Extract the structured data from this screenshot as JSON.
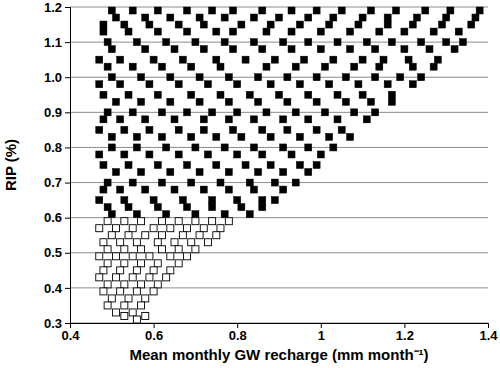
{
  "chart_data": {
    "type": "scatter",
    "x_label": "Mean monthly GW recharge (mm month⁻¹)",
    "y_label": "RIP (%)",
    "xlim": [
      0.4,
      1.4
    ],
    "ylim": [
      0.3,
      1.2
    ],
    "xticks": [
      0.4,
      0.6,
      0.8,
      1,
      1.2,
      1.4
    ],
    "yticks": [
      0.3,
      0.4,
      0.5,
      0.6,
      0.7,
      0.8,
      0.9,
      {
        "value": 1,
        "label": "1.0"
      },
      1.1,
      1.2
    ],
    "grid": true,
    "series": [
      {
        "color": "#000000",
        "marker": "square",
        "x": [
          0.5,
          0.55,
          0.61,
          0.68,
          0.74,
          0.79,
          0.86,
          0.93,
          0.99,
          1.05,
          1.12,
          1.18,
          1.25,
          1.31,
          1.38,
          0.51,
          0.58,
          0.64,
          0.71,
          0.77,
          0.84,
          0.9,
          0.97,
          1.03,
          1.1,
          1.16,
          1.23,
          1.3,
          1.37,
          0.48,
          0.53,
          0.59,
          0.66,
          0.72,
          0.81,
          0.88,
          0.95,
          1.02,
          1.09,
          1.16,
          1.22,
          1.29,
          1.36,
          0.48,
          0.54,
          0.61,
          0.68,
          0.75,
          0.79,
          0.87,
          0.93,
          1.0,
          1.07,
          1.14,
          1.2,
          1.27,
          1.33,
          0.49,
          0.56,
          0.63,
          0.7,
          0.77,
          0.84,
          0.91,
          0.97,
          1.04,
          1.11,
          1.17,
          1.24,
          1.3,
          1.34,
          0.5,
          0.58,
          0.65,
          0.72,
          0.79,
          0.86,
          0.93,
          1.0,
          1.07,
          1.13,
          1.2,
          1.26,
          1.32,
          0.47,
          0.52,
          0.6,
          0.67,
          0.75,
          0.82,
          0.89,
          0.96,
          1.03,
          1.1,
          1.15,
          1.21,
          1.28,
          0.49,
          0.55,
          0.62,
          0.69,
          0.76,
          0.87,
          0.94,
          1.01,
          1.08,
          1.14,
          1.22,
          1.27,
          0.5,
          0.57,
          0.64,
          0.71,
          0.78,
          0.85,
          0.92,
          0.99,
          1.06,
          1.13,
          1.19,
          1.24,
          0.47,
          0.52,
          0.59,
          0.66,
          0.73,
          0.8,
          0.88,
          0.95,
          1.02,
          1.09,
          1.16,
          1.22,
          0.48,
          0.54,
          0.61,
          0.69,
          0.76,
          0.83,
          0.9,
          0.97,
          1.04,
          1.1,
          1.17,
          0.51,
          0.57,
          0.64,
          0.71,
          0.78,
          0.85,
          0.92,
          0.99,
          1.06,
          1.12,
          1.17,
          0.49,
          0.55,
          0.62,
          0.68,
          0.74,
          0.8,
          0.87,
          0.94,
          1.01,
          1.08,
          1.13,
          0.48,
          0.52,
          0.58,
          0.65,
          0.72,
          0.78,
          0.84,
          0.91,
          0.97,
          1.04,
          1.11,
          0.47,
          0.53,
          0.59,
          0.66,
          0.72,
          0.79,
          0.86,
          0.92,
          0.99,
          1.05,
          0.5,
          0.56,
          0.62,
          0.69,
          0.75,
          0.81,
          0.88,
          0.95,
          1.02,
          1.07,
          0.5,
          0.56,
          0.63,
          0.7,
          0.77,
          0.84,
          0.91,
          0.97,
          1.03,
          0.47,
          0.53,
          0.59,
          0.66,
          0.73,
          0.8,
          0.86,
          0.93,
          1.0,
          0.48,
          0.54,
          0.61,
          0.68,
          0.75,
          0.82,
          0.88,
          0.95,
          0.99,
          0.51,
          0.57,
          0.64,
          0.71,
          0.78,
          0.85,
          0.91,
          0.97,
          0.49,
          0.55,
          0.62,
          0.69,
          0.76,
          0.83,
          0.89,
          0.94,
          0.48,
          0.52,
          0.58,
          0.65,
          0.72,
          0.78,
          0.84,
          0.91,
          0.47,
          0.53,
          0.6,
          0.67,
          0.74,
          0.8,
          0.86,
          0.89,
          0.49,
          0.54,
          0.61,
          0.68,
          0.74,
          0.81,
          0.86,
          0.5,
          0.56,
          0.63,
          0.7,
          0.77,
          0.83
        ],
        "values": [
          1.19,
          1.19,
          1.19,
          1.19,
          1.19,
          1.19,
          1.19,
          1.19,
          1.19,
          1.19,
          1.19,
          1.19,
          1.19,
          1.19,
          1.19,
          1.17,
          1.17,
          1.17,
          1.17,
          1.17,
          1.17,
          1.17,
          1.17,
          1.17,
          1.17,
          1.17,
          1.17,
          1.17,
          1.17,
          1.15,
          1.15,
          1.15,
          1.15,
          1.15,
          1.15,
          1.15,
          1.15,
          1.15,
          1.15,
          1.15,
          1.15,
          1.15,
          1.15,
          1.13,
          1.13,
          1.13,
          1.13,
          1.13,
          1.13,
          1.13,
          1.13,
          1.13,
          1.13,
          1.13,
          1.13,
          1.13,
          1.13,
          1.1,
          1.1,
          1.1,
          1.1,
          1.1,
          1.1,
          1.1,
          1.1,
          1.1,
          1.1,
          1.1,
          1.1,
          1.1,
          1.1,
          1.08,
          1.08,
          1.08,
          1.08,
          1.08,
          1.08,
          1.08,
          1.08,
          1.08,
          1.08,
          1.08,
          1.08,
          1.08,
          1.05,
          1.05,
          1.05,
          1.05,
          1.05,
          1.05,
          1.05,
          1.05,
          1.05,
          1.05,
          1.05,
          1.05,
          1.05,
          1.03,
          1.03,
          1.03,
          1.03,
          1.03,
          1.03,
          1.03,
          1.03,
          1.03,
          1.03,
          1.03,
          1.03,
          1.0,
          1.0,
          1.0,
          1.0,
          1.0,
          1.0,
          1.0,
          1.0,
          1.0,
          1.0,
          1.0,
          1.0,
          0.98,
          0.98,
          0.98,
          0.98,
          0.98,
          0.98,
          0.98,
          0.98,
          0.98,
          0.98,
          0.98,
          0.98,
          0.95,
          0.95,
          0.95,
          0.95,
          0.95,
          0.95,
          0.95,
          0.95,
          0.95,
          0.95,
          0.95,
          0.93,
          0.93,
          0.93,
          0.93,
          0.93,
          0.93,
          0.93,
          0.93,
          0.93,
          0.93,
          0.93,
          0.9,
          0.9,
          0.9,
          0.9,
          0.9,
          0.9,
          0.9,
          0.9,
          0.9,
          0.9,
          0.9,
          0.88,
          0.88,
          0.88,
          0.88,
          0.88,
          0.88,
          0.88,
          0.88,
          0.88,
          0.88,
          0.88,
          0.85,
          0.85,
          0.85,
          0.85,
          0.85,
          0.85,
          0.85,
          0.85,
          0.85,
          0.85,
          0.83,
          0.83,
          0.83,
          0.83,
          0.83,
          0.83,
          0.83,
          0.83,
          0.83,
          0.83,
          0.8,
          0.8,
          0.8,
          0.8,
          0.8,
          0.8,
          0.8,
          0.8,
          0.8,
          0.78,
          0.78,
          0.78,
          0.78,
          0.78,
          0.78,
          0.78,
          0.78,
          0.78,
          0.75,
          0.75,
          0.75,
          0.75,
          0.75,
          0.75,
          0.75,
          0.75,
          0.75,
          0.73,
          0.73,
          0.73,
          0.73,
          0.73,
          0.73,
          0.73,
          0.73,
          0.7,
          0.7,
          0.7,
          0.7,
          0.7,
          0.7,
          0.7,
          0.7,
          0.68,
          0.68,
          0.68,
          0.68,
          0.68,
          0.68,
          0.68,
          0.68,
          0.65,
          0.65,
          0.65,
          0.65,
          0.65,
          0.65,
          0.65,
          0.65,
          0.63,
          0.63,
          0.63,
          0.63,
          0.63,
          0.63,
          0.63,
          0.61,
          0.61,
          0.61,
          0.61,
          0.61,
          0.61
        ]
      },
      {
        "color": "#000000",
        "marker": "open-square",
        "x": [
          0.49,
          0.53,
          0.57,
          0.62,
          0.66,
          0.7,
          0.74,
          0.78,
          0.47,
          0.51,
          0.55,
          0.6,
          0.64,
          0.68,
          0.72,
          0.76,
          0.5,
          0.54,
          0.58,
          0.62,
          0.67,
          0.71,
          0.75,
          0.48,
          0.52,
          0.56,
          0.61,
          0.65,
          0.69,
          0.73,
          0.49,
          0.53,
          0.57,
          0.62,
          0.66,
          0.7,
          0.47,
          0.51,
          0.55,
          0.59,
          0.64,
          0.68,
          0.49,
          0.53,
          0.57,
          0.61,
          0.66,
          0.48,
          0.52,
          0.56,
          0.6,
          0.64,
          0.47,
          0.51,
          0.55,
          0.59,
          0.63,
          0.49,
          0.53,
          0.57,
          0.61,
          0.48,
          0.52,
          0.56,
          0.6,
          0.5,
          0.54,
          0.58,
          0.49,
          0.53,
          0.57,
          0.51,
          0.55,
          0.53,
          0.58,
          0.56
        ],
        "values": [
          0.59,
          0.59,
          0.59,
          0.59,
          0.59,
          0.59,
          0.59,
          0.59,
          0.57,
          0.57,
          0.57,
          0.57,
          0.57,
          0.57,
          0.57,
          0.57,
          0.55,
          0.55,
          0.55,
          0.55,
          0.55,
          0.55,
          0.55,
          0.53,
          0.53,
          0.53,
          0.53,
          0.53,
          0.53,
          0.53,
          0.51,
          0.51,
          0.51,
          0.51,
          0.51,
          0.51,
          0.49,
          0.49,
          0.49,
          0.49,
          0.49,
          0.49,
          0.47,
          0.47,
          0.47,
          0.47,
          0.47,
          0.45,
          0.45,
          0.45,
          0.45,
          0.45,
          0.43,
          0.43,
          0.43,
          0.43,
          0.43,
          0.41,
          0.41,
          0.41,
          0.41,
          0.39,
          0.39,
          0.39,
          0.39,
          0.37,
          0.37,
          0.37,
          0.35,
          0.35,
          0.35,
          0.33,
          0.33,
          0.32,
          0.32,
          0.31
        ]
      }
    ]
  }
}
